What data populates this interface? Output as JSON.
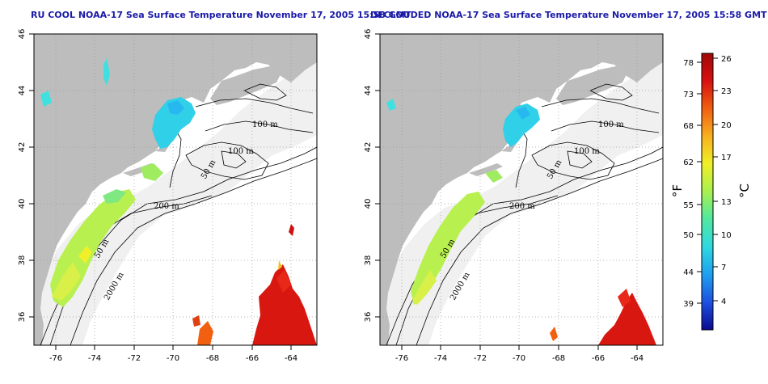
{
  "panels": [
    {
      "title": "RU COOL NOAA-17 Sea Surface Temperature November 17, 2005 15:58 GMT",
      "contours": [
        "100 m",
        "100 m",
        "50 m",
        "200 m",
        "50 m",
        "2000 m"
      ]
    },
    {
      "title": "DECLOUDED NOAA-17 Sea Surface Temperature November 17, 2005 15:58 GMT",
      "contours": [
        "100 m",
        "100 m",
        "50 m",
        "200 m",
        "50 m",
        "2000 m"
      ]
    }
  ],
  "map": {
    "lon_ticks": [
      "-76",
      "-74",
      "-72",
      "-70",
      "-68",
      "-66",
      "-64"
    ],
    "lat_ticks": [
      "46",
      "44",
      "42",
      "40",
      "38",
      "36"
    ],
    "lon_range": [
      -77.2,
      -62.8
    ],
    "lat_range": [
      35,
      46
    ]
  },
  "colorbar": {
    "fahrenheit_label": "°F",
    "celsius_label": "°C",
    "fahrenheit_ticks": [
      "78",
      "73",
      "68",
      "62",
      "55",
      "50",
      "44",
      "39"
    ],
    "celsius_ticks": [
      "26",
      "23",
      "20",
      "17",
      "13",
      "10",
      "7",
      "4"
    ],
    "colors": [
      "#0a0a90",
      "#1e50e0",
      "#1ea0f0",
      "#30d8e0",
      "#50e8a0",
      "#a8f050",
      "#f0f028",
      "#f8b020",
      "#f06010",
      "#d81010",
      "#a00808"
    ]
  },
  "colors": {
    "land": "#bdbdbd",
    "shelf": "#f0f0f0",
    "title": "#1a1aa8"
  }
}
